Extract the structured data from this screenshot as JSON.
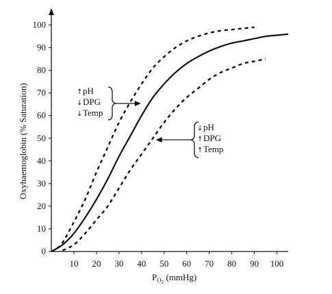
{
  "chart_data": {
    "type": "line",
    "title": "",
    "xlabel": "P",
    "xlabel_sub": "O",
    "xlabel_sub2": "2",
    "xlabel_unit": " (mmHg)",
    "ylabel": "Oxyhaemoglobin (% Saturation)",
    "xlim": [
      0,
      105
    ],
    "ylim": [
      0,
      105
    ],
    "x_ticks": [
      "10",
      "20",
      "30",
      "40",
      "50",
      "60",
      "70",
      "80",
      "90",
      "100"
    ],
    "y_ticks": [
      "0",
      "10",
      "20",
      "30",
      "40",
      "50",
      "60",
      "70",
      "80",
      "90",
      "100"
    ],
    "grid": false,
    "series": [
      {
        "style": "dashed",
        "color": "#111111",
        "x": [
          0,
          2,
          5,
          10,
          15,
          20,
          25,
          30,
          35,
          40,
          45,
          50,
          55,
          60,
          65,
          70,
          75,
          80,
          85,
          90
        ],
        "y": [
          0,
          1,
          4,
          13,
          23,
          35,
          46,
          57,
          66,
          74,
          81,
          86,
          90,
          93,
          95,
          96.5,
          97.5,
          98,
          98.5,
          99
        ]
      },
      {
        "style": "solid",
        "color": "#111111",
        "x": [
          0,
          5,
          10,
          15,
          20,
          25,
          30,
          35,
          40,
          45,
          50,
          55,
          60,
          65,
          70,
          75,
          80,
          85,
          90,
          95,
          100,
          105
        ],
        "y": [
          0,
          3,
          8,
          15,
          23,
          32,
          42,
          51,
          60,
          68,
          74,
          79,
          83,
          86,
          88.5,
          90.5,
          92,
          93,
          94,
          95,
          95.5,
          96
        ]
      },
      {
        "style": "dashed",
        "color": "#111111",
        "x": [
          5,
          10,
          15,
          20,
          25,
          30,
          35,
          40,
          45,
          50,
          55,
          60,
          65,
          70,
          75,
          80,
          85,
          90,
          95
        ],
        "y": [
          0.5,
          3,
          8,
          14,
          20,
          28,
          36,
          43,
          50,
          57,
          63,
          68,
          72,
          76,
          79,
          81,
          83,
          84,
          85
        ]
      }
    ],
    "annotations": [
      {
        "lines": [
          {
            "arrow": "↑",
            "text": "pH"
          },
          {
            "arrow": "↓",
            "text": "DPG"
          },
          {
            "arrow": "↓",
            "text": "Temp"
          }
        ],
        "points_to_x": 40,
        "points_to_y": 67
      },
      {
        "lines": [
          {
            "arrow": "↓",
            "text": "pH"
          },
          {
            "arrow": "↑",
            "text": "DPG"
          },
          {
            "arrow": "↑",
            "text": "Temp"
          }
        ],
        "points_to_x": 46,
        "points_to_y": 50
      }
    ]
  }
}
